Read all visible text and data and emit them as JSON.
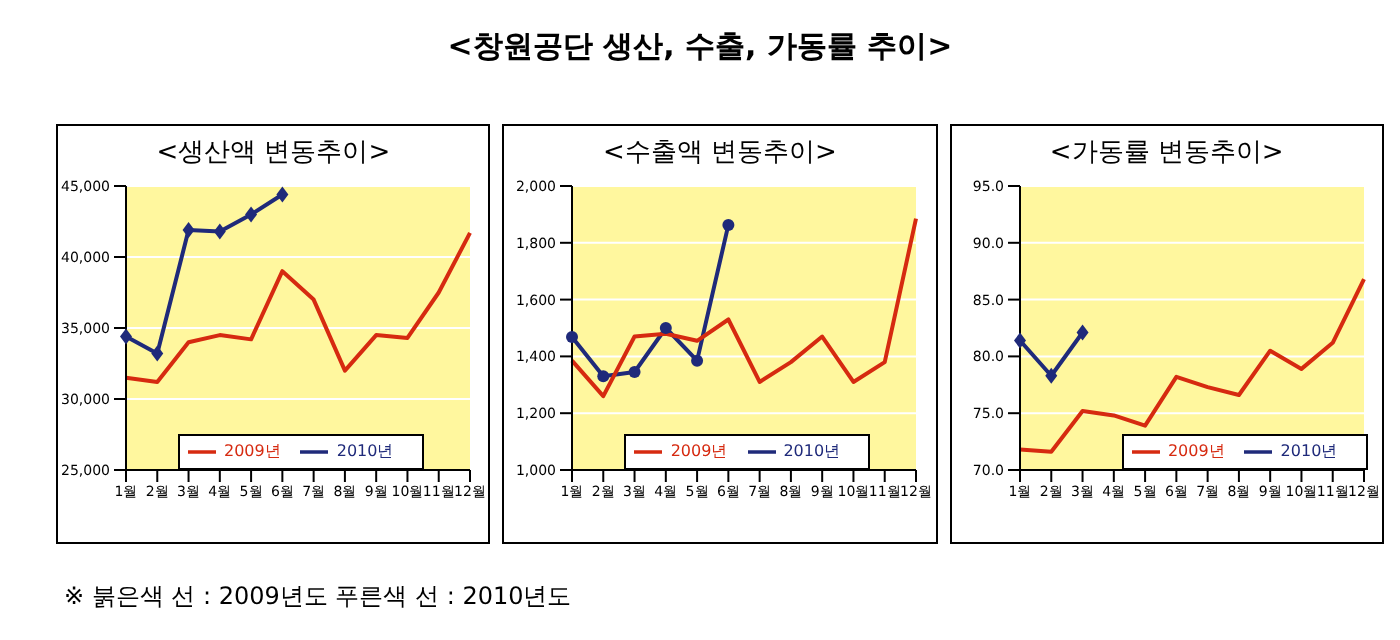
{
  "chart_data": [
    {
      "type": "line",
      "title": "<생산액 변동추이>",
      "annotations": [
        "<창원공단 생산, 수출, 가동률 추이>",
        "※ 붉은색 선 : 2009년도 푸른색 선 : 2010년도"
      ],
      "categories": [
        "1월",
        "2월",
        "3월",
        "4월",
        "5월",
        "6월",
        "7월",
        "8월",
        "9월",
        "10월",
        "11월",
        "12월"
      ],
      "series": [
        {
          "name": "2010년",
          "color": "#1f2a7a",
          "marker": "diamond",
          "values": [
            34400,
            33200,
            41900,
            41800,
            43000,
            44400,
            null,
            null,
            null,
            null,
            null,
            null
          ]
        },
        {
          "name": "2009년",
          "color": "#d62a10",
          "marker": "none",
          "values": [
            31500,
            31200,
            34000,
            34500,
            34200,
            39000,
            37000,
            32000,
            34500,
            34300,
            37500,
            41700
          ]
        }
      ],
      "ylim": [
        25000,
        45000
      ],
      "yticks": [
        {
          "value": 25000,
          "label": "25,000"
        },
        {
          "value": 30000,
          "label": "30,000"
        },
        {
          "value": 35000,
          "label": "35,000"
        },
        {
          "value": 40000,
          "label": "40,000"
        },
        {
          "value": 45000,
          "label": "45,000"
        }
      ],
      "grid": "y",
      "legend": "bottom"
    },
    {
      "type": "line",
      "title": "<수출액 변동추이>",
      "categories": [
        "1월",
        "2월",
        "3월",
        "4월",
        "5월",
        "6월",
        "7월",
        "8월",
        "9월",
        "10월",
        "11월",
        "12월"
      ],
      "series": [
        {
          "name": "2010년",
          "color": "#1f2a7a",
          "marker": "circle",
          "values": [
            1468,
            1330,
            1345,
            1500,
            1385,
            1863,
            null,
            null,
            null,
            null,
            null,
            null
          ]
        },
        {
          "name": "2009년",
          "color": "#d62a10",
          "marker": "none",
          "values": [
            1385,
            1260,
            1470,
            1480,
            1455,
            1530,
            1310,
            1380,
            1470,
            1310,
            1380,
            1885
          ]
        }
      ],
      "ylim": [
        1000,
        2000
      ],
      "yticks": [
        {
          "value": 1000,
          "label": "1,000"
        },
        {
          "value": 1200,
          "label": "1,200"
        },
        {
          "value": 1400,
          "label": "1,400"
        },
        {
          "value": 1600,
          "label": "1,600"
        },
        {
          "value": 1800,
          "label": "1,800"
        },
        {
          "value": 2000,
          "label": "2,000"
        }
      ],
      "grid": "y",
      "legend": "bottom"
    },
    {
      "type": "line",
      "title": "<가동률 변동추이>",
      "categories": [
        "1월",
        "2월",
        "3월",
        "4월",
        "5월",
        "6월",
        "7월",
        "8월",
        "9월",
        "10월",
        "11월",
        "12월"
      ],
      "series": [
        {
          "name": "2010년",
          "color": "#1f2a7a",
          "marker": "diamond",
          "values": [
            81.4,
            78.3,
            82.1,
            null,
            null,
            null,
            null,
            null,
            null,
            null,
            null,
            null
          ]
        },
        {
          "name": "2009년",
          "color": "#d62a10",
          "marker": "none",
          "values": [
            71.8,
            71.6,
            75.2,
            74.8,
            73.9,
            78.2,
            77.3,
            76.6,
            80.5,
            78.9,
            81.2,
            86.8
          ]
        }
      ],
      "ylim": [
        70,
        95
      ],
      "yticks": [
        {
          "value": 70,
          "label": "70.0"
        },
        {
          "value": 75,
          "label": "75.0"
        },
        {
          "value": 80,
          "label": "80.0"
        },
        {
          "value": 85,
          "label": "85.0"
        },
        {
          "value": 90,
          "label": "90.0"
        },
        {
          "value": 95,
          "label": "95.0"
        }
      ],
      "grid": "y",
      "legend": "bottom right"
    }
  ]
}
